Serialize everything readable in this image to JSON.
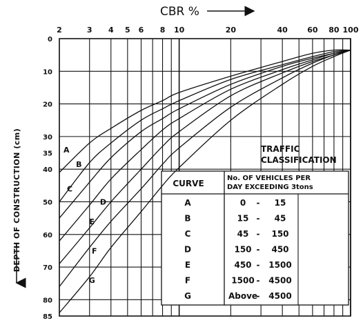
{
  "chart_data": {
    "type": "line",
    "title": "CBR %",
    "ylabel": "DEPTH OF CONSTRUCTION (cm)",
    "x_scale": "log",
    "xlim": [
      2,
      100
    ],
    "ylim": [
      85,
      0
    ],
    "x_ticks": [
      {
        "value": 2,
        "label": "2"
      },
      {
        "value": 3,
        "label": "3"
      },
      {
        "value": 4,
        "label": "4"
      },
      {
        "value": 5,
        "label": "5"
      },
      {
        "value": 6,
        "label": "6"
      },
      {
        "value": 8,
        "label": "8"
      },
      {
        "value": 10,
        "label": "10"
      },
      {
        "value": 20,
        "label": "20"
      },
      {
        "value": 40,
        "label": "40"
      },
      {
        "value": 60,
        "label": "60"
      },
      {
        "value": 80,
        "label": "80"
      },
      {
        "value": 100,
        "label": "100"
      }
    ],
    "y_ticks": [
      {
        "value": 0,
        "label": "0"
      },
      {
        "value": 10,
        "label": "10"
      },
      {
        "value": 20,
        "label": "20"
      },
      {
        "value": 30,
        "label": "30"
      },
      {
        "value": 35,
        "label": "35"
      },
      {
        "value": 40,
        "label": "40"
      },
      {
        "value": 50,
        "label": "50"
      },
      {
        "value": 60,
        "label": "60"
      },
      {
        "value": 70,
        "label": "70"
      },
      {
        "value": 80,
        "label": "80"
      },
      {
        "value": 85,
        "label": "85"
      }
    ],
    "series": [
      {
        "name": "A",
        "label_at": [
          2.2,
          34
        ],
        "points": [
          [
            2,
            41
          ],
          [
            3,
            32
          ],
          [
            4,
            27.5
          ],
          [
            6,
            22
          ],
          [
            8,
            19
          ],
          [
            10,
            16.5
          ],
          [
            20,
            11.5
          ],
          [
            40,
            7
          ],
          [
            60,
            4.5
          ],
          [
            80,
            3.5
          ],
          [
            100,
            3.5
          ]
        ]
      },
      {
        "name": "B",
        "label_at": [
          2.6,
          38.5
        ],
        "points": [
          [
            2,
            50
          ],
          [
            3,
            38
          ],
          [
            4,
            32
          ],
          [
            6,
            25
          ],
          [
            8,
            21.5
          ],
          [
            10,
            19
          ],
          [
            20,
            12.5
          ],
          [
            40,
            8
          ],
          [
            60,
            5.5
          ],
          [
            80,
            4
          ],
          [
            100,
            3.5
          ]
        ]
      },
      {
        "name": "C",
        "label_at": [
          2.3,
          46
        ],
        "points": [
          [
            2,
            55
          ],
          [
            3,
            44
          ],
          [
            4,
            36.5
          ],
          [
            6,
            28.5
          ],
          [
            8,
            24.5
          ],
          [
            10,
            21.5
          ],
          [
            20,
            14
          ],
          [
            40,
            8.5
          ],
          [
            60,
            6
          ],
          [
            80,
            4.5
          ],
          [
            100,
            3.5
          ]
        ]
      },
      {
        "name": "D",
        "label_at": [
          3.6,
          50
        ],
        "points": [
          [
            2,
            62
          ],
          [
            3,
            51
          ],
          [
            4,
            43
          ],
          [
            6,
            34
          ],
          [
            8,
            28
          ],
          [
            10,
            24.5
          ],
          [
            20,
            15.5
          ],
          [
            40,
            9.5
          ],
          [
            60,
            6.5
          ],
          [
            80,
            4.5
          ],
          [
            100,
            3.5
          ]
        ]
      },
      {
        "name": "E",
        "label_at": [
          3.1,
          56
        ],
        "points": [
          [
            2,
            69
          ],
          [
            3,
            58
          ],
          [
            4,
            50
          ],
          [
            6,
            40
          ],
          [
            8,
            33
          ],
          [
            10,
            28.5
          ],
          [
            20,
            17.5
          ],
          [
            40,
            10.5
          ],
          [
            60,
            7
          ],
          [
            80,
            5
          ],
          [
            100,
            3.5
          ]
        ]
      },
      {
        "name": "F",
        "label_at": [
          3.2,
          65
        ],
        "points": [
          [
            2,
            76
          ],
          [
            3,
            64
          ],
          [
            4,
            56
          ],
          [
            6,
            46
          ],
          [
            8,
            38.5
          ],
          [
            10,
            33.5
          ],
          [
            20,
            21
          ],
          [
            40,
            12
          ],
          [
            60,
            7.5
          ],
          [
            80,
            5
          ],
          [
            100,
            3.5
          ]
        ]
      },
      {
        "name": "G",
        "label_at": [
          3.1,
          74
        ],
        "points": [
          [
            2,
            84
          ],
          [
            3,
            73
          ],
          [
            4,
            64
          ],
          [
            6,
            53
          ],
          [
            8,
            45
          ],
          [
            10,
            39.5
          ],
          [
            20,
            25
          ],
          [
            40,
            14
          ],
          [
            60,
            8.5
          ],
          [
            80,
            5.5
          ],
          [
            100,
            3.5
          ]
        ]
      }
    ],
    "table": {
      "title_line1": "TRAFFIC",
      "title_line2": "CLASSIFICATION",
      "col1_header": "CURVE",
      "col2_header_line1": "No. OF VEHICLES PER",
      "col2_header_line2": "DAY EXCEEDING 3tons",
      "rows": [
        {
          "curve": "A",
          "from": "0",
          "to": "15"
        },
        {
          "curve": "B",
          "from": "15",
          "to": "45"
        },
        {
          "curve": "C",
          "from": "45",
          "to": "150"
        },
        {
          "curve": "D",
          "from": "150",
          "to": "450"
        },
        {
          "curve": "E",
          "from": "450",
          "to": "1500"
        },
        {
          "curve": "F",
          "from": "1500",
          "to": "4500"
        },
        {
          "curve": "G",
          "from": "Above",
          "to": "4500"
        }
      ]
    }
  }
}
